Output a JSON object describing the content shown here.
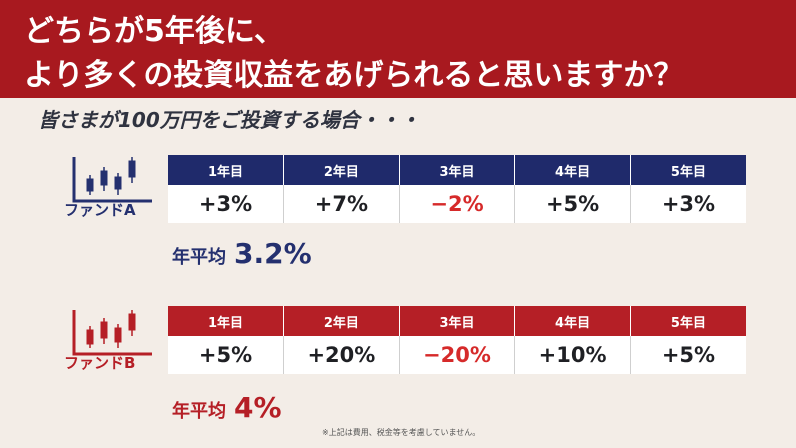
{
  "header": {
    "line1": "どちらが5年後に、",
    "line2": "より多くの投資収益をあげられると思いますか？"
  },
  "subtitle": "皆さまが100万円をご投資する場合・・・",
  "fund_a": {
    "name": "ファンドA",
    "color": "#24306f",
    "years": [
      "1年目",
      "2年目",
      "3年目",
      "4年目",
      "5年目"
    ],
    "returns": [
      "+3%",
      "+7%",
      "−2%",
      "+5%",
      "+3%"
    ],
    "avg_label": "年平均",
    "avg_value": "3.2%"
  },
  "fund_b": {
    "name": "ファンドB",
    "color": "#b51f26",
    "years": [
      "1年目",
      "2年目",
      "3年目",
      "4年目",
      "5年目"
    ],
    "returns": [
      "+5%",
      "+20%",
      "−20%",
      "+10%",
      "+5%"
    ],
    "avg_label": "年平均",
    "avg_value": "4%"
  },
  "note": "※上記は費用、税金等を考慮していません。"
}
